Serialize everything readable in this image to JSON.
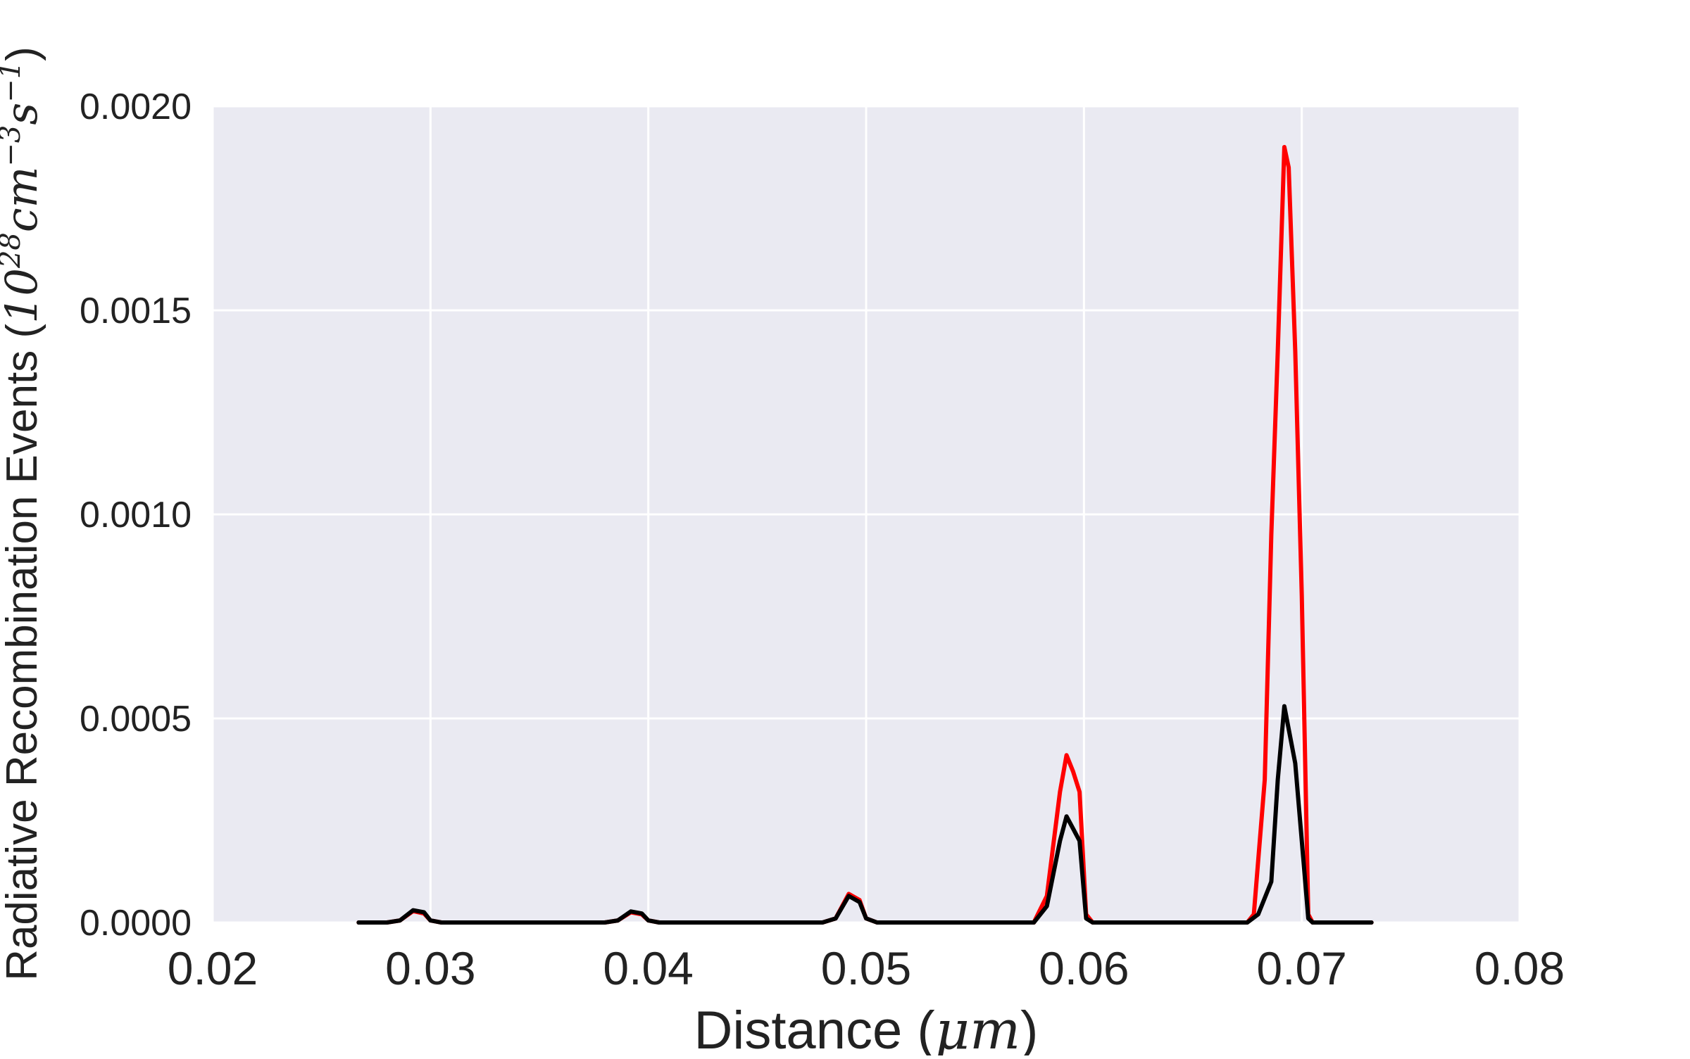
{
  "chart_data": {
    "type": "line",
    "title": "",
    "xlabel": {
      "prefix": "Distance (",
      "unit": "μm",
      "suffix": ")"
    },
    "ylabel": {
      "prefix": "Radiative Recombination Events (",
      "base": "10",
      "exp": "28",
      "u1": "cm",
      "e1": "−3",
      "u2": "s",
      "e2": "−1",
      "suffix": ")"
    },
    "xlim": [
      0.02,
      0.08
    ],
    "ylim": [
      0,
      0.002
    ],
    "xticks": [
      0.02,
      0.03,
      0.04,
      0.05,
      0.06,
      0.07,
      0.08
    ],
    "xtick_labels": [
      "0.02",
      "0.03",
      "0.04",
      "0.05",
      "0.06",
      "0.07",
      "0.08"
    ],
    "yticks": [
      0,
      0.0005,
      0.001,
      0.0015,
      0.002
    ],
    "ytick_labels": [
      "0.0000",
      "0.0005",
      "0.0010",
      "0.0015",
      "0.0020"
    ],
    "grid": true,
    "background": "#eaeaf2",
    "series": [
      {
        "color": "#ff0000",
        "x": [
          0.0267,
          0.028,
          0.0286,
          0.0292,
          0.0297,
          0.03,
          0.0305,
          0.038,
          0.0386,
          0.0392,
          0.0397,
          0.04,
          0.0405,
          0.048,
          0.0486,
          0.0492,
          0.0497,
          0.05,
          0.0505,
          0.0577,
          0.0583,
          0.0589,
          0.0592,
          0.0595,
          0.0598,
          0.0601,
          0.0604,
          0.0675,
          0.0678,
          0.0683,
          0.0686,
          0.0689,
          0.0692,
          0.0694,
          0.0697,
          0.07,
          0.0703,
          0.0705,
          0.0732
        ],
        "y": [
          0,
          0,
          5e-06,
          2.8e-05,
          2.2e-05,
          5e-06,
          0,
          0,
          5e-06,
          2.5e-05,
          2e-05,
          5e-06,
          0,
          0,
          1e-05,
          7e-05,
          5.5e-05,
          1e-05,
          0,
          0,
          6.5e-05,
          0.00032,
          0.00041,
          0.00037,
          0.00032,
          2e-05,
          0,
          0,
          2e-05,
          0.00035,
          0.00095,
          0.0014,
          0.0019,
          0.00185,
          0.0014,
          0.0008,
          2e-05,
          0,
          0
        ]
      },
      {
        "color": "#000000",
        "x": [
          0.0267,
          0.028,
          0.0286,
          0.0292,
          0.0297,
          0.03,
          0.0305,
          0.038,
          0.0386,
          0.0392,
          0.0397,
          0.04,
          0.0405,
          0.048,
          0.0486,
          0.0492,
          0.0497,
          0.05,
          0.0505,
          0.0577,
          0.0583,
          0.0589,
          0.0592,
          0.0595,
          0.0598,
          0.0601,
          0.0604,
          0.0675,
          0.068,
          0.0686,
          0.0689,
          0.0692,
          0.0697,
          0.07,
          0.0703,
          0.0705,
          0.0732
        ],
        "y": [
          0,
          0,
          5e-06,
          3e-05,
          2.5e-05,
          5e-06,
          0,
          0,
          5e-06,
          2.7e-05,
          2.2e-05,
          5e-06,
          0,
          0,
          1e-05,
          6.5e-05,
          5e-05,
          1e-05,
          0,
          0,
          4e-05,
          0.0002,
          0.00026,
          0.00023,
          0.0002,
          1e-05,
          0,
          0,
          2e-05,
          0.0001,
          0.00035,
          0.00053,
          0.00039,
          0.0002,
          1e-05,
          0,
          0
        ]
      }
    ]
  }
}
